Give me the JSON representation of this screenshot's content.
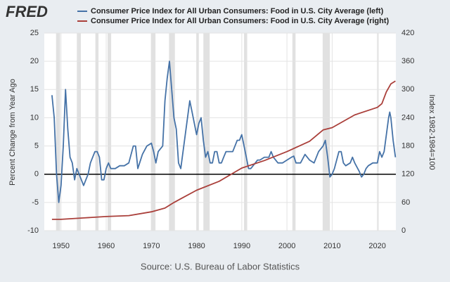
{
  "chart_data": {
    "type": "line",
    "logo": "FRED",
    "note": "Source: U.S. Bureau of Labor Statistics",
    "ylabel": "Percent Change from Year Ago",
    "y2label": "Index 1982-1984=100",
    "grid": true,
    "xlim": [
      1946.3,
      2024.1
    ],
    "xticks": [
      1950,
      1960,
      1970,
      1980,
      1990,
      2000,
      2010,
      2020
    ],
    "ylim": [
      -10,
      25
    ],
    "yticks": [
      -10,
      -5,
      0,
      5,
      10,
      15,
      20,
      25
    ],
    "y2lim": [
      0,
      420
    ],
    "y2ticks": [
      0,
      60,
      120,
      180,
      240,
      300,
      360,
      420
    ],
    "recessions": [
      [
        1948.9,
        1949.8
      ],
      [
        1953.5,
        1954.4
      ],
      [
        1957.6,
        1958.3
      ],
      [
        1960.3,
        1961.1
      ],
      [
        1969.9,
        1970.9
      ],
      [
        1973.9,
        1975.2
      ],
      [
        1980.0,
        1980.5
      ],
      [
        1981.5,
        1982.9
      ],
      [
        1990.5,
        1991.2
      ],
      [
        2001.2,
        2001.9
      ],
      [
        2007.9,
        2009.5
      ],
      [
        2020.1,
        2020.3
      ]
    ],
    "recession_color": "#e1e1e1",
    "series": [
      {
        "name": "Consumer Price Index for All Urban Consumers: Food in U.S. City Average (left)",
        "color": "#4572a7",
        "axis": "y",
        "x": [
          1948,
          1948.5,
          1949,
          1949.5,
          1950,
          1950.5,
          1951,
          1951.5,
          1952,
          1952.5,
          1953,
          1953.5,
          1954,
          1954.5,
          1955,
          1955.5,
          1956,
          1956.5,
          1957,
          1957.5,
          1958,
          1958.5,
          1959,
          1959.5,
          1960,
          1960.5,
          1961,
          1962,
          1963,
          1964,
          1965,
          1966,
          1966.5,
          1967,
          1968,
          1969,
          1970,
          1970.5,
          1971,
          1971.5,
          1972,
          1972.5,
          1973,
          1973.5,
          1974,
          1974.5,
          1975,
          1975.5,
          1976,
          1976.5,
          1977,
          1977.5,
          1978,
          1978.5,
          1979,
          1979.5,
          1980,
          1980.5,
          1981,
          1981.5,
          1982,
          1982.5,
          1983,
          1983.5,
          1984,
          1984.5,
          1985,
          1985.5,
          1986,
          1986.5,
          1987,
          1987.5,
          1988,
          1988.5,
          1989,
          1989.5,
          1990,
          1990.5,
          1991,
          1991.5,
          1992,
          1992.5,
          1993,
          1993.5,
          1994,
          1995,
          1996,
          1996.5,
          1997,
          1998,
          1999,
          2000,
          2001,
          2001.5,
          2002,
          2003,
          2004,
          2005,
          2006,
          2007,
          2008,
          2008.5,
          2009,
          2009.5,
          2010,
          2010.5,
          2011,
          2011.5,
          2012,
          2012.5,
          2013,
          2014,
          2014.5,
          2015,
          2016,
          2016.5,
          2017,
          2017.5,
          2018,
          2019,
          2020,
          2020.5,
          2021,
          2021.5,
          2022,
          2022.5,
          2022.75,
          2023,
          2023.5,
          2024
        ],
        "values": [
          14,
          10,
          0,
          -5,
          -2,
          5,
          15,
          8,
          3,
          2,
          -1,
          1,
          0,
          -1,
          -2,
          -1,
          0,
          2,
          3,
          4,
          4,
          3,
          -1,
          -1,
          1,
          2,
          1,
          1,
          1.5,
          1.5,
          2,
          5,
          5,
          1,
          3.5,
          5,
          5.5,
          4,
          2,
          4,
          4.5,
          5,
          13,
          17,
          20,
          15,
          10,
          8,
          2,
          1,
          4,
          7,
          10,
          13,
          11,
          9,
          7,
          9,
          10,
          6,
          3,
          4,
          2,
          2,
          4,
          4,
          2,
          2,
          3,
          4,
          4,
          4,
          4,
          5,
          6,
          6,
          7,
          5,
          3,
          1,
          1,
          1.5,
          2,
          2.5,
          2.5,
          3,
          3,
          4,
          3,
          2,
          2,
          2.5,
          3,
          3.2,
          2,
          2,
          3.5,
          2.5,
          2,
          4,
          5,
          6,
          3,
          -0.5,
          0,
          1,
          2.5,
          4,
          4,
          2,
          1.5,
          2,
          3,
          2,
          0.5,
          -0.5,
          0,
          1,
          1.5,
          2,
          2,
          4,
          3,
          4,
          7,
          10,
          11,
          10,
          6,
          3
        ]
      },
      {
        "name": "Consumer Price Index for All Urban Consumers: Food in U.S. City Average (right)",
        "color": "#aa3f3a",
        "axis": "y2",
        "x": [
          1948,
          1950,
          1955,
          1960,
          1965,
          1970,
          1973,
          1975,
          1980,
          1985,
          1990,
          1995,
          2000,
          2005,
          2008,
          2010,
          2015,
          2020,
          2021,
          2022,
          2023,
          2024
        ],
        "values": [
          24,
          24,
          27,
          30,
          32,
          40,
          48,
          60,
          86,
          105,
          133,
          149,
          168,
          190,
          214,
          219,
          246,
          262,
          270,
          295,
          312,
          318
        ]
      }
    ]
  }
}
